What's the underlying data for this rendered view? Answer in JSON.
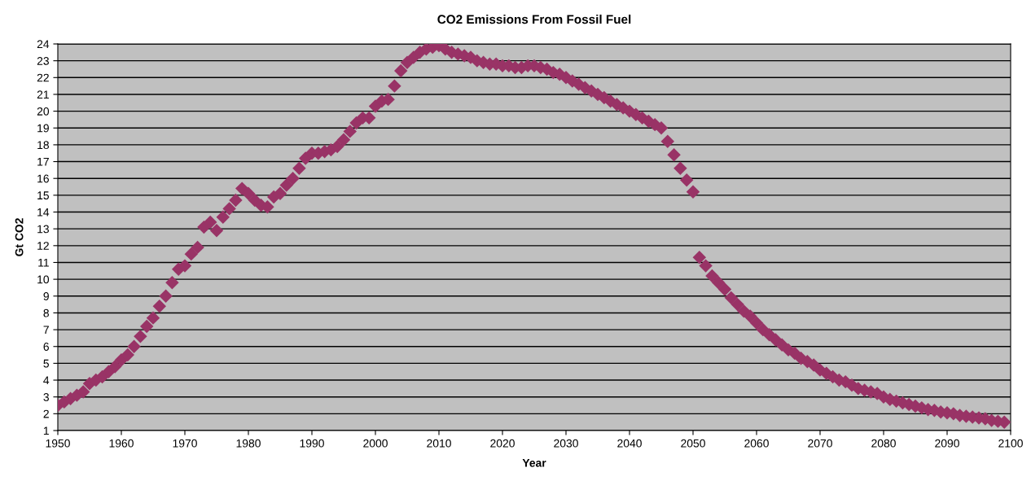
{
  "chart_data": {
    "type": "scatter",
    "title": "CO2 Emissions From Fossil Fuel",
    "xlabel": "Year",
    "ylabel": "Gt CO2",
    "xlim": [
      1950,
      2100
    ],
    "xticks": [
      1950,
      1960,
      1970,
      1980,
      1990,
      2000,
      2010,
      2020,
      2030,
      2040,
      2050,
      2060,
      2070,
      2080,
      2090,
      2100
    ],
    "ylim": [
      1,
      24
    ],
    "yticks": [
      1,
      2,
      3,
      4,
      5,
      6,
      7,
      8,
      9,
      10,
      11,
      12,
      13,
      14,
      15,
      16,
      17,
      18,
      19,
      20,
      21,
      22,
      23,
      24
    ],
    "grid": "y",
    "marker": "diamond",
    "series": [
      {
        "color": "#993366",
        "x": [
          1950,
          1951,
          1952,
          1953,
          1954,
          1955,
          1956,
          1957,
          1958,
          1959,
          1960,
          1961,
          1962,
          1963,
          1964,
          1965,
          1966,
          1967,
          1968,
          1969,
          1970,
          1971,
          1972,
          1973,
          1974,
          1975,
          1976,
          1977,
          1978,
          1979,
          1980,
          1981,
          1982,
          1983,
          1984,
          1985,
          1986,
          1987,
          1988,
          1989,
          1990,
          1991,
          1992,
          1993,
          1994,
          1995,
          1996,
          1997,
          1998,
          1999,
          2000,
          2001,
          2002,
          2003,
          2004,
          2005,
          2006,
          2007,
          2008,
          2009,
          2010,
          2011,
          2012,
          2013,
          2014,
          2015,
          2016,
          2017,
          2018,
          2019,
          2020,
          2021,
          2022,
          2023,
          2024,
          2025,
          2026,
          2027,
          2028,
          2029,
          2030,
          2031,
          2032,
          2033,
          2034,
          2035,
          2036,
          2037,
          2038,
          2039,
          2040,
          2041,
          2042,
          2043,
          2044,
          2045,
          2046,
          2047,
          2048,
          2049,
          2050,
          2051,
          2052,
          2053,
          2054,
          2055,
          2056,
          2057,
          2058,
          2059,
          2060,
          2061,
          2062,
          2063,
          2064,
          2065,
          2066,
          2067,
          2068,
          2069,
          2070,
          2071,
          2072,
          2073,
          2074,
          2075,
          2076,
          2077,
          2078,
          2079,
          2080,
          2081,
          2082,
          2083,
          2084,
          2085,
          2086,
          2087,
          2088,
          2089,
          2090,
          2091,
          2092,
          2093,
          2094,
          2095,
          2096,
          2097,
          2098,
          2099
        ],
        "values": [
          2.5,
          2.7,
          2.9,
          3.1,
          3.3,
          3.8,
          4.0,
          4.2,
          4.5,
          4.8,
          5.2,
          5.5,
          6.0,
          6.6,
          7.2,
          7.7,
          8.4,
          9.0,
          9.8,
          10.6,
          10.8,
          11.5,
          11.9,
          13.1,
          13.4,
          12.9,
          13.7,
          14.2,
          14.7,
          15.4,
          15.1,
          14.7,
          14.4,
          14.3,
          14.9,
          15.1,
          15.6,
          16.0,
          16.6,
          17.2,
          17.5,
          17.5,
          17.6,
          17.7,
          17.9,
          18.3,
          18.8,
          19.3,
          19.6,
          19.6,
          20.3,
          20.6,
          20.7,
          21.5,
          22.4,
          22.9,
          23.2,
          23.5,
          23.7,
          23.8,
          23.9,
          23.7,
          23.5,
          23.4,
          23.3,
          23.2,
          23.0,
          22.9,
          22.8,
          22.8,
          22.7,
          22.7,
          22.6,
          22.6,
          22.7,
          22.7,
          22.6,
          22.5,
          22.3,
          22.2,
          22.0,
          21.8,
          21.6,
          21.4,
          21.2,
          21.0,
          20.8,
          20.6,
          20.4,
          20.2,
          20.0,
          19.8,
          19.6,
          19.4,
          19.2,
          19.0,
          18.2,
          17.4,
          16.6,
          15.9,
          15.2,
          11.3,
          10.8,
          10.2,
          9.8,
          9.4,
          8.9,
          8.5,
          8.1,
          7.8,
          7.4,
          7.0,
          6.7,
          6.4,
          6.1,
          5.8,
          5.6,
          5.3,
          5.1,
          4.9,
          4.6,
          4.4,
          4.2,
          4.0,
          3.9,
          3.7,
          3.5,
          3.4,
          3.3,
          3.2,
          3.0,
          2.85,
          2.75,
          2.65,
          2.55,
          2.45,
          2.35,
          2.25,
          2.2,
          2.1,
          2.05,
          2.0,
          1.9,
          1.85,
          1.8,
          1.75,
          1.7,
          1.6,
          1.55,
          1.5
        ]
      }
    ]
  }
}
